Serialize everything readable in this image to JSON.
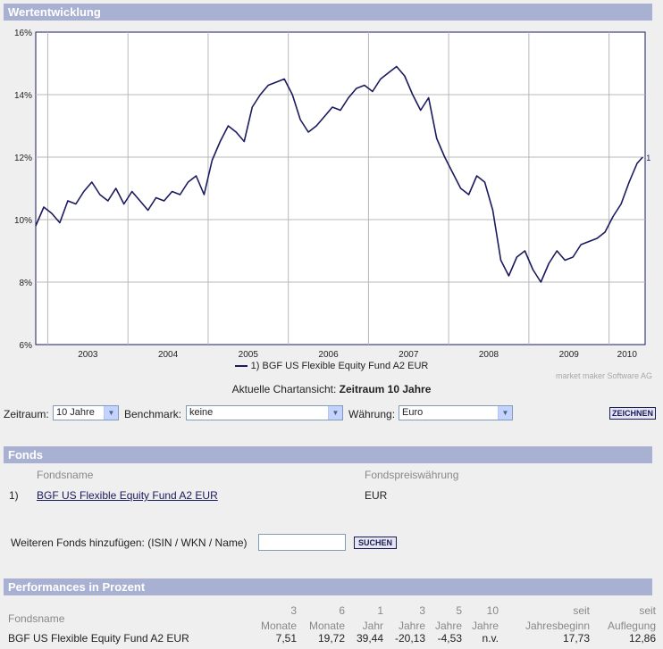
{
  "sections": {
    "wertentwicklung": "Wertentwicklung",
    "fonds": "Fonds",
    "performances": "Performances in Prozent"
  },
  "chart_data": {
    "type": "line",
    "y_ticks": [
      "16%",
      "14%",
      "12%",
      "10%",
      "8%",
      "6%"
    ],
    "ylim": [
      6,
      16
    ],
    "x_ticks": [
      "2003",
      "2004",
      "2005",
      "2006",
      "2007",
      "2008",
      "2009",
      "2010"
    ],
    "xlim": [
      2002.85,
      2010.45
    ],
    "grid": true,
    "series": [
      {
        "name": "BGF US Flexible Equity Fund A2 EUR",
        "end_label": "1",
        "x": [
          2002.85,
          2002.95,
          2003.05,
          2003.15,
          2003.25,
          2003.35,
          2003.45,
          2003.55,
          2003.65,
          2003.75,
          2003.85,
          2003.95,
          2004.05,
          2004.15,
          2004.25,
          2004.35,
          2004.45,
          2004.55,
          2004.65,
          2004.75,
          2004.85,
          2004.95,
          2005.05,
          2005.15,
          2005.25,
          2005.35,
          2005.45,
          2005.55,
          2005.65,
          2005.75,
          2005.85,
          2005.95,
          2006.05,
          2006.15,
          2006.25,
          2006.35,
          2006.45,
          2006.55,
          2006.65,
          2006.75,
          2006.85,
          2006.95,
          2007.05,
          2007.15,
          2007.25,
          2007.35,
          2007.45,
          2007.55,
          2007.65,
          2007.75,
          2007.85,
          2007.95,
          2008.05,
          2008.15,
          2008.25,
          2008.35,
          2008.45,
          2008.55,
          2008.65,
          2008.75,
          2008.85,
          2008.95,
          2009.05,
          2009.15,
          2009.25,
          2009.35,
          2009.45,
          2009.55,
          2009.65,
          2009.75,
          2009.85,
          2009.95,
          2010.05,
          2010.15,
          2010.25,
          2010.35,
          2010.42
        ],
        "y": [
          9.8,
          10.4,
          10.2,
          9.9,
          10.6,
          10.5,
          10.9,
          11.2,
          10.8,
          10.6,
          11.0,
          10.5,
          10.9,
          10.6,
          10.3,
          10.7,
          10.6,
          10.9,
          10.8,
          11.2,
          11.4,
          10.8,
          11.9,
          12.5,
          13.0,
          12.8,
          12.5,
          13.6,
          14.0,
          14.3,
          14.4,
          14.5,
          14.0,
          13.2,
          12.8,
          13.0,
          13.3,
          13.6,
          13.5,
          13.9,
          14.2,
          14.3,
          14.1,
          14.5,
          14.7,
          14.9,
          14.6,
          14.0,
          13.5,
          13.9,
          12.6,
          12.0,
          11.5,
          11.0,
          10.8,
          11.4,
          11.2,
          10.3,
          8.7,
          8.2,
          8.8,
          9.0,
          8.4,
          8.0,
          8.6,
          9.0,
          8.7,
          8.8,
          9.2,
          9.3,
          9.4,
          9.6,
          10.1,
          10.5,
          11.2,
          11.8,
          12.0
        ]
      }
    ]
  },
  "chart_view": {
    "prefix": "Aktuelle Chartansicht: ",
    "value": "Zeitraum 10 Jahre"
  },
  "credit": "market maker Software AG",
  "controls": {
    "zeitraum_label": "Zeitraum:",
    "zeitraum_value": "10 Jahre",
    "benchmark_label": "Benchmark:",
    "benchmark_value": "keine",
    "waehrung_label": "Währung:",
    "waehrung_value": "Euro",
    "zeichnen_label": "ZEICHNEN"
  },
  "fonds": {
    "col_name": "Fondsname",
    "col_currency": "Fondspreiswährung",
    "rows": [
      {
        "index": "1)",
        "name": "BGF US Flexible Equity Fund A2 EUR",
        "currency": "EUR"
      }
    ],
    "add_label": "Weiteren Fonds hinzufügen: (ISIN / WKN / Name)",
    "add_value": "",
    "suchen_label": "SUCHEN"
  },
  "performance": {
    "name_header": "Fondsname",
    "columns": [
      {
        "top": "3",
        "bottom": "Monate"
      },
      {
        "top": "6",
        "bottom": "Monate"
      },
      {
        "top": "1",
        "bottom": "Jahr"
      },
      {
        "top": "3",
        "bottom": "Jahre"
      },
      {
        "top": "5",
        "bottom": "Jahre"
      },
      {
        "top": "10",
        "bottom": "Jahre"
      },
      {
        "top": "seit",
        "bottom": "Jahresbeginn"
      },
      {
        "top": "seit",
        "bottom": "Auflegung"
      }
    ],
    "row": {
      "name": "BGF US Flexible Equity Fund A2 EUR",
      "values": [
        "7,51",
        "19,72",
        "39,44",
        "-20,13",
        "-4,53",
        "n.v.",
        "17,73",
        "12,86"
      ]
    }
  }
}
